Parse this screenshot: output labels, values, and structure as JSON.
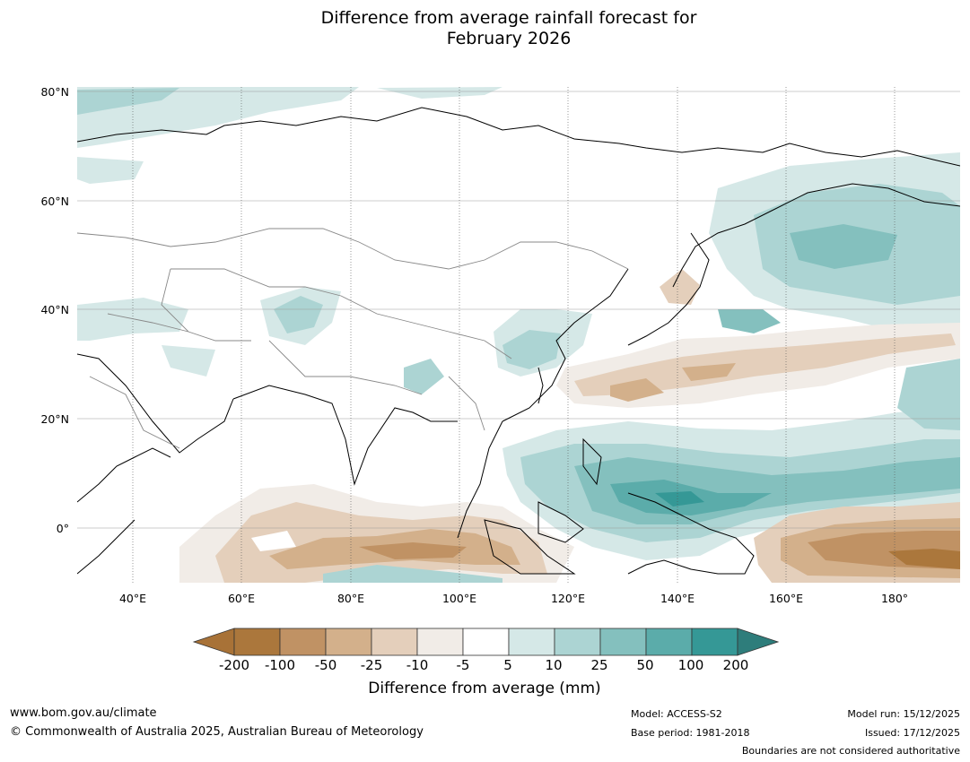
{
  "title": {
    "line1": "Difference from average rainfall forecast for",
    "line2": "February 2026"
  },
  "lat_labels": [
    "80°N",
    "60°N",
    "40°N",
    "20°N",
    "0°"
  ],
  "lon_labels": [
    "40°E",
    "60°E",
    "80°E",
    "100°E",
    "120°E",
    "140°E",
    "160°E",
    "180°"
  ],
  "colorbar": {
    "title": "Difference from average (mm)",
    "ticks": [
      "-200",
      "-100",
      "-50",
      "-25",
      "-10",
      "-5",
      "5",
      "10",
      "25",
      "50",
      "100",
      "200"
    ],
    "colors": [
      "#a87237",
      "#ab773c",
      "#c09264",
      "#d3b08b",
      "#e4cfbb",
      "#f1ece7",
      "#ffffff",
      "#d5e8e7",
      "#acd4d3",
      "#84c0be",
      "#5bacaa",
      "#359896",
      "#2e7d7b"
    ]
  },
  "footer": {
    "website": "www.bom.gov.au/climate",
    "copyright": "© Commonwealth of Australia 2025, Australian Bureau of Meteorology",
    "model": "Model: ACCESS-S2",
    "base_period": "Base period: 1981-2018",
    "model_run": "Model run: 15/12/2025",
    "issued": "Issued: 17/12/2025",
    "boundaries": "Boundaries are not considered authoritative"
  }
}
